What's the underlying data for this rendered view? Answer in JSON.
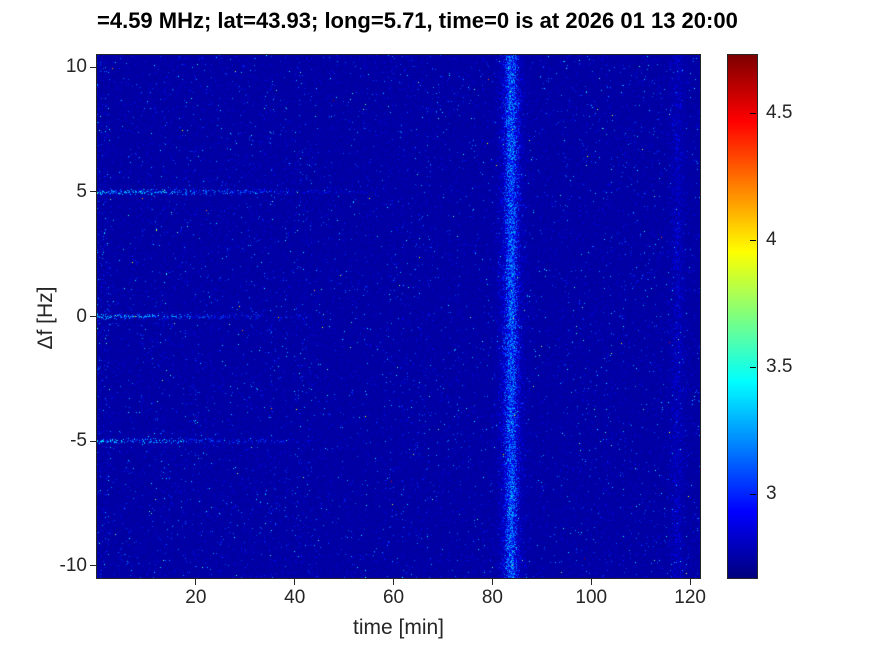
{
  "title": {
    "text": "=4.59 MHz;  lat=43.93; long=5.71, time=0 is at 2026 01 13 20:00"
  },
  "chart_data": {
    "type": "heatmap",
    "title": "=4.59 MHz;  lat=43.93; long=5.71, time=0 is at 2026 01 13 20:00",
    "xlabel": "time [min]",
    "ylabel": "Δf [Hz]",
    "xlim": [
      0,
      122
    ],
    "ylim": [
      -10.5,
      10.5
    ],
    "x_ticks": [
      20,
      40,
      60,
      80,
      100,
      120
    ],
    "y_ticks": [
      10,
      5,
      0,
      -5,
      -10
    ],
    "colormap": "jet",
    "clim": [
      2.67,
      4.73
    ],
    "colorbar_ticks": [
      4.5,
      4,
      3.5,
      3
    ],
    "background_value": 2.72,
    "legend_position": "colorbar-right",
    "grid": false,
    "features": {
      "description": "Dark blue noise field with speckle; bright speckled horizontal lines at Δf = +5, 0, -5 Hz fading out near t≈45-57 min; strong speckled vertical band near t≈84 min spanning all frequencies; weaker vertical band near t≈117 min; denser speckle noise for t < 36 min.",
      "horizontal_lines": [
        {
          "freq_hz": 5,
          "x_start": 0,
          "x_end": 57,
          "strength": 1.0
        },
        {
          "freq_hz": 0,
          "x_start": 0,
          "x_end": 44,
          "strength": 0.95
        },
        {
          "freq_hz": -5,
          "x_start": 0,
          "x_end": 47,
          "strength": 0.9
        }
      ],
      "vertical_bands": [
        {
          "time_min": 83.8,
          "width_min": 3.2,
          "boost": 1.0
        },
        {
          "time_min": 83.8,
          "width_min": 1.2,
          "boost": 0.9
        },
        {
          "time_min": 117.5,
          "width_min": 2.0,
          "boost": 0.35
        }
      ],
      "noise": {
        "speckle_probability": 0.055,
        "speckle_scale": 0.16,
        "left_region_end_min": 36,
        "left_region_factor": 1.25,
        "left_edge_min": 2.5,
        "left_edge_factor": 1.9,
        "hot_pixel_probability": 3e-05
      }
    }
  },
  "colors": {
    "axis": "#262626",
    "tick_label": "#262626",
    "title": "#000000",
    "figure_background": "#ffffff"
  }
}
